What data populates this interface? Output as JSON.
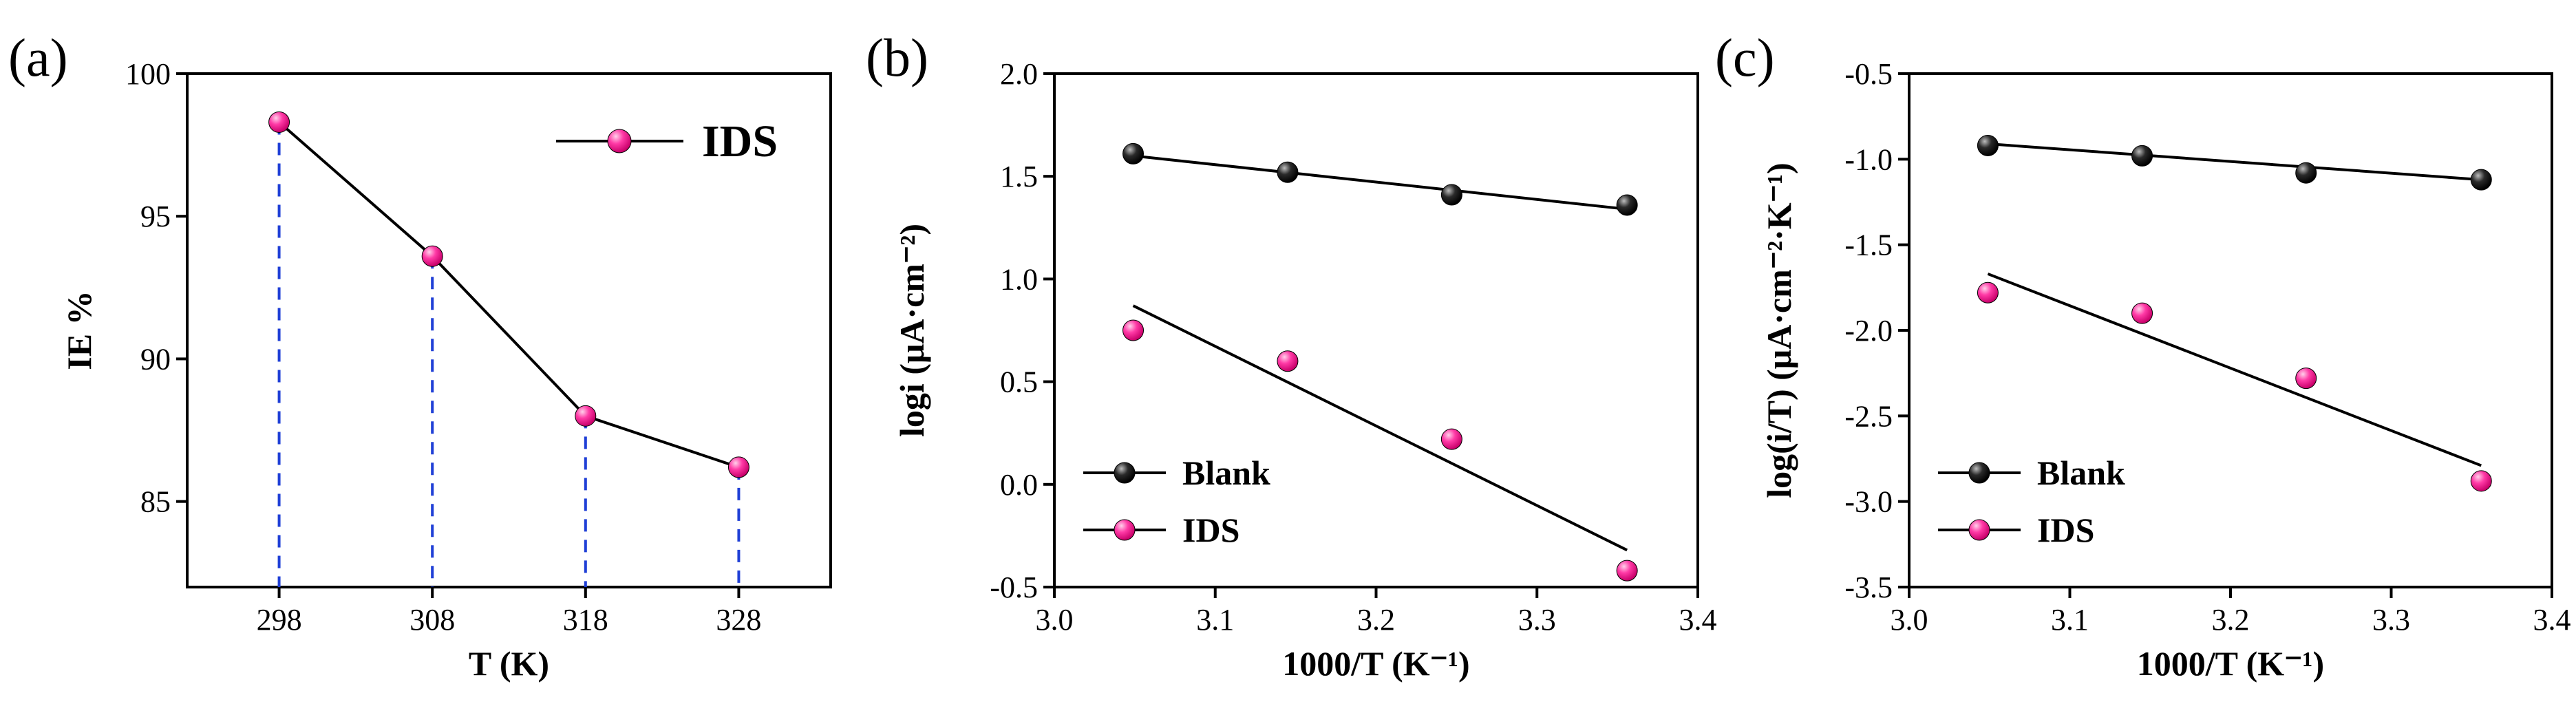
{
  "chart_data": [
    {
      "id": "a",
      "panel_label": "(a)",
      "type": "line",
      "xlabel": "T (K)",
      "ylabel": "IE %",
      "xlim": [
        292,
        334
      ],
      "ylim": [
        82,
        100
      ],
      "categories": [
        "298",
        "308",
        "318",
        "328"
      ],
      "yticks": [
        "85",
        "90",
        "95",
        "100"
      ],
      "series": [
        {
          "name": "IDS",
          "color": "#ff1493",
          "x": [
            298,
            308,
            318,
            328
          ],
          "y": [
            98.3,
            93.6,
            88.0,
            86.2
          ]
        }
      ],
      "drop_lines": true,
      "legend_position": "top-right"
    },
    {
      "id": "b",
      "panel_label": "(b)",
      "type": "scatter",
      "xlabel": "1000/T (K⁻¹)",
      "ylabel": "logi (μA·cm⁻²)",
      "xlim": [
        3.0,
        3.4
      ],
      "ylim": [
        -0.5,
        2.0
      ],
      "xticks": [
        "3.0",
        "3.1",
        "3.2",
        "3.3",
        "3.4"
      ],
      "yticks": [
        "-0.5",
        "0.0",
        "0.5",
        "1.0",
        "1.5",
        "2.0"
      ],
      "series": [
        {
          "name": "Blank",
          "color": "#1a1a1a",
          "x": [
            3.049,
            3.145,
            3.247,
            3.356
          ],
          "y": [
            1.61,
            1.52,
            1.41,
            1.36
          ],
          "fit": [
            1.6,
            1.34
          ]
        },
        {
          "name": "IDS",
          "color": "#ff1493",
          "x": [
            3.049,
            3.145,
            3.247,
            3.356
          ],
          "y": [
            0.75,
            0.6,
            0.22,
            -0.42
          ],
          "fit": [
            0.87,
            -0.32
          ]
        }
      ],
      "legend_position": "bottom-left"
    },
    {
      "id": "c",
      "panel_label": "(c)",
      "type": "scatter",
      "xlabel": "1000/T (K⁻¹)",
      "ylabel": "log(i/T) (μA·cm⁻²·K⁻¹)",
      "xlim": [
        3.0,
        3.4
      ],
      "ylim": [
        -3.5,
        -0.5
      ],
      "xticks": [
        "3.0",
        "3.1",
        "3.2",
        "3.3",
        "3.4"
      ],
      "yticks": [
        "-3.5",
        "-3.0",
        "-2.5",
        "-2.0",
        "-1.5",
        "-1.0",
        "-0.5"
      ],
      "series": [
        {
          "name": "Blank",
          "color": "#1a1a1a",
          "x": [
            3.049,
            3.145,
            3.247,
            3.356
          ],
          "y": [
            -0.92,
            -0.98,
            -1.08,
            -1.12
          ],
          "fit": [
            -0.91,
            -1.12
          ]
        },
        {
          "name": "IDS",
          "color": "#ff1493",
          "x": [
            3.049,
            3.145,
            3.247,
            3.356
          ],
          "y": [
            -1.78,
            -1.9,
            -2.28,
            -2.88
          ],
          "fit": [
            -1.67,
            -2.79
          ]
        }
      ],
      "legend_position": "bottom-left"
    }
  ]
}
